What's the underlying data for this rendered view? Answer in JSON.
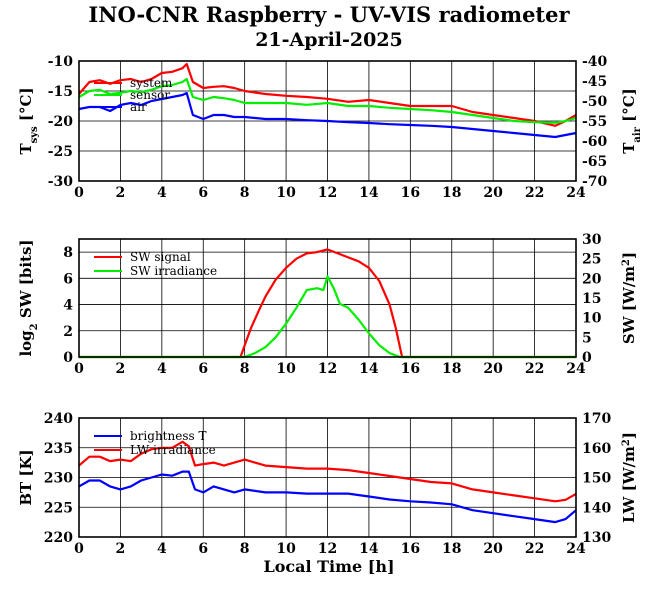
{
  "title": "INO-CNR Raspberry - UV-VIS radiometer",
  "date": "21-April-2025",
  "xlabel": "Local Time [h]",
  "chart_data": [
    {
      "type": "line",
      "name": "temperatures",
      "xlim": [
        0,
        24
      ],
      "xticks": [
        0,
        2,
        4,
        6,
        8,
        10,
        12,
        14,
        16,
        18,
        20,
        22,
        24
      ],
      "ylim": [
        -30,
        -10
      ],
      "yticks": [
        -30,
        -25,
        -20,
        -15,
        -10
      ],
      "y2lim": [
        -70,
        -40
      ],
      "y2ticks": [
        -70,
        -65,
        -60,
        -55,
        -50,
        -45,
        -40
      ],
      "ylabel_main": "T",
      "ylabel_sub": "sys",
      "ylabel_unit": " [°C]",
      "y2label_main": "T",
      "y2label_sub": "air",
      "y2label_unit": " [°C]",
      "grid": true,
      "legend": [
        "system",
        "sensor",
        "air"
      ],
      "series": [
        {
          "name": "system",
          "color": "#ff0000",
          "axis": "left",
          "x": [
            0,
            0.5,
            1,
            1.5,
            2,
            2.5,
            3,
            3.5,
            4,
            4.5,
            5,
            5.2,
            5.5,
            6,
            6.5,
            7,
            7.5,
            8,
            9,
            10,
            11,
            12,
            13,
            14,
            15,
            16,
            17,
            18,
            19,
            20,
            21,
            22,
            23,
            23.5,
            24
          ],
          "y": [
            -15.5,
            -13.5,
            -13.2,
            -13.8,
            -13.2,
            -13.0,
            -13.5,
            -13.0,
            -12.0,
            -11.8,
            -11.2,
            -10.5,
            -13.5,
            -14.5,
            -14.3,
            -14.2,
            -14.5,
            -15.0,
            -15.5,
            -15.8,
            -16.0,
            -16.3,
            -16.8,
            -16.5,
            -17.0,
            -17.5,
            -17.5,
            -17.5,
            -18.5,
            -19.0,
            -19.5,
            -20.0,
            -20.8,
            -20.0,
            -19.0
          ]
        },
        {
          "name": "sensor",
          "color": "#00ee00",
          "axis": "left",
          "x": [
            0,
            0.5,
            1,
            1.5,
            2,
            2.5,
            3,
            3.5,
            4,
            4.5,
            5,
            5.2,
            5.5,
            6,
            6.5,
            7,
            7.5,
            8,
            9,
            10,
            11,
            12,
            13,
            14,
            15,
            16,
            17,
            18,
            19,
            20,
            21,
            22,
            23,
            23.5,
            24
          ],
          "y": [
            -16.0,
            -15.0,
            -14.8,
            -15.5,
            -15.3,
            -15.0,
            -15.2,
            -14.8,
            -14.2,
            -14.0,
            -13.5,
            -13.0,
            -16.0,
            -16.5,
            -16.0,
            -16.2,
            -16.5,
            -17.0,
            -17.0,
            -17.0,
            -17.3,
            -17.0,
            -17.5,
            -17.5,
            -17.8,
            -18.0,
            -18.2,
            -18.5,
            -19.0,
            -19.5,
            -20.0,
            -20.2,
            -20.3,
            -20.0,
            -19.5
          ]
        },
        {
          "name": "air",
          "color": "#0000ff",
          "axis": "right",
          "x": [
            0,
            0.5,
            1,
            1.5,
            2,
            2.5,
            3,
            3.5,
            4,
            4.5,
            5,
            5.2,
            5.5,
            6,
            6.5,
            7,
            7.5,
            8,
            9,
            10,
            11,
            12,
            13,
            14,
            15,
            16,
            17,
            18,
            19,
            20,
            21,
            22,
            23,
            23.5,
            24
          ],
          "y": [
            -52.0,
            -51.5,
            -51.5,
            -52.5,
            -51.0,
            -50.5,
            -51.0,
            -50.0,
            -49.5,
            -49.0,
            -48.5,
            -48.0,
            -53.5,
            -54.5,
            -53.5,
            -53.5,
            -54.0,
            -54.0,
            -54.5,
            -54.5,
            -54.8,
            -55.0,
            -55.3,
            -55.5,
            -55.8,
            -56.0,
            -56.2,
            -56.5,
            -57.0,
            -57.5,
            -58.0,
            -58.5,
            -59.0,
            -58.5,
            -58.0
          ]
        }
      ]
    },
    {
      "type": "line",
      "name": "shortwave",
      "xlim": [
        0,
        24
      ],
      "xticks": [
        0,
        2,
        4,
        6,
        8,
        10,
        12,
        14,
        16,
        18,
        20,
        22,
        24
      ],
      "ylim": [
        0,
        9
      ],
      "yticks": [
        0,
        2,
        4,
        6,
        8
      ],
      "y2lim": [
        0,
        30
      ],
      "y2ticks": [
        0,
        5,
        10,
        15,
        20,
        25,
        30
      ],
      "ylabel_pre": "log",
      "ylabel_sub": "2",
      "ylabel_rest": " SW [bits]",
      "y2label_pre": "SW [W/m",
      "y2label_sup": "2",
      "y2label_post": "]",
      "grid": true,
      "legend": [
        "SW signal",
        "SW irradiance"
      ],
      "series": [
        {
          "name": "SW signal",
          "color": "#ff0000",
          "axis": "left",
          "x": [
            0,
            7.8,
            8.0,
            8.3,
            8.7,
            9,
            9.5,
            10,
            10.5,
            11,
            11.5,
            12,
            12.5,
            13,
            13.5,
            14,
            14.5,
            15,
            15.3,
            15.6,
            16,
            24
          ],
          "y": [
            0,
            0,
            0.9,
            2.2,
            3.6,
            4.6,
            5.9,
            6.8,
            7.5,
            7.9,
            8.0,
            8.2,
            7.9,
            7.6,
            7.3,
            6.8,
            5.8,
            4.0,
            2.2,
            0,
            0,
            0
          ]
        },
        {
          "name": "SW irradiance",
          "color": "#00ee00",
          "axis": "right",
          "x": [
            0,
            8.0,
            8.5,
            9,
            9.5,
            10,
            10.5,
            11,
            11.5,
            11.8,
            12.0,
            12.3,
            12.6,
            13,
            13.5,
            14,
            14.5,
            15,
            15.5,
            24
          ],
          "y": [
            0,
            0,
            1.0,
            2.5,
            5.0,
            8.5,
            12.5,
            17.0,
            17.5,
            17.0,
            20.5,
            17.5,
            13.5,
            12.5,
            9.5,
            6.0,
            3.0,
            1.0,
            0,
            0
          ]
        }
      ]
    },
    {
      "type": "line",
      "name": "longwave",
      "xlim": [
        0,
        24
      ],
      "xticks": [
        0,
        2,
        4,
        6,
        8,
        10,
        12,
        14,
        16,
        18,
        20,
        22,
        24
      ],
      "ylim": [
        220,
        240
      ],
      "yticks": [
        220,
        225,
        230,
        235,
        240
      ],
      "y2lim": [
        130,
        170
      ],
      "y2ticks": [
        130,
        140,
        150,
        160,
        170
      ],
      "ylabel": "BT [K]",
      "y2label_pre": "LW [W/m",
      "y2label_sup": "2",
      "y2label_post": "]",
      "grid": true,
      "legend": [
        "brightness T",
        "LW irradiance"
      ],
      "series": [
        {
          "name": "brightness T",
          "color": "#0000ff",
          "axis": "left",
          "x": [
            0,
            0.5,
            1,
            1.5,
            2,
            2.5,
            3,
            3.5,
            4,
            4.5,
            5,
            5.3,
            5.6,
            6,
            6.5,
            7,
            7.5,
            8,
            9,
            10,
            11,
            12,
            13,
            14,
            15,
            16,
            17,
            18,
            19,
            20,
            21,
            22,
            23,
            23.5,
            24
          ],
          "y": [
            228.5,
            229.5,
            229.5,
            228.5,
            228.0,
            228.5,
            229.5,
            230.0,
            230.5,
            230.3,
            231.0,
            231.0,
            228.0,
            227.5,
            228.5,
            228.0,
            227.5,
            228.0,
            227.5,
            227.5,
            227.3,
            227.3,
            227.3,
            226.8,
            226.3,
            226.0,
            225.8,
            225.5,
            224.5,
            224.0,
            223.5,
            223.0,
            222.5,
            223.0,
            224.5
          ]
        },
        {
          "name": "LW irradiance",
          "color": "#ff0000",
          "axis": "right",
          "x": [
            0,
            0.5,
            1,
            1.5,
            2,
            2.5,
            3,
            3.5,
            4,
            4.5,
            5,
            5.3,
            5.6,
            6,
            6.5,
            7,
            7.5,
            8,
            9,
            10,
            11,
            12,
            13,
            14,
            15,
            16,
            17,
            18,
            19,
            20,
            21,
            22,
            23,
            23.5,
            24
          ],
          "y": [
            154.0,
            157.0,
            157.0,
            155.5,
            156.0,
            155.5,
            158.0,
            159.5,
            160.0,
            160.0,
            162.0,
            160.5,
            154.0,
            154.5,
            155.0,
            154.0,
            155.0,
            156.0,
            154.0,
            153.5,
            153.0,
            153.0,
            152.5,
            151.5,
            150.5,
            149.5,
            148.5,
            148.0,
            146.0,
            145.0,
            144.0,
            143.0,
            142.0,
            142.5,
            144.5
          ]
        }
      ]
    }
  ]
}
